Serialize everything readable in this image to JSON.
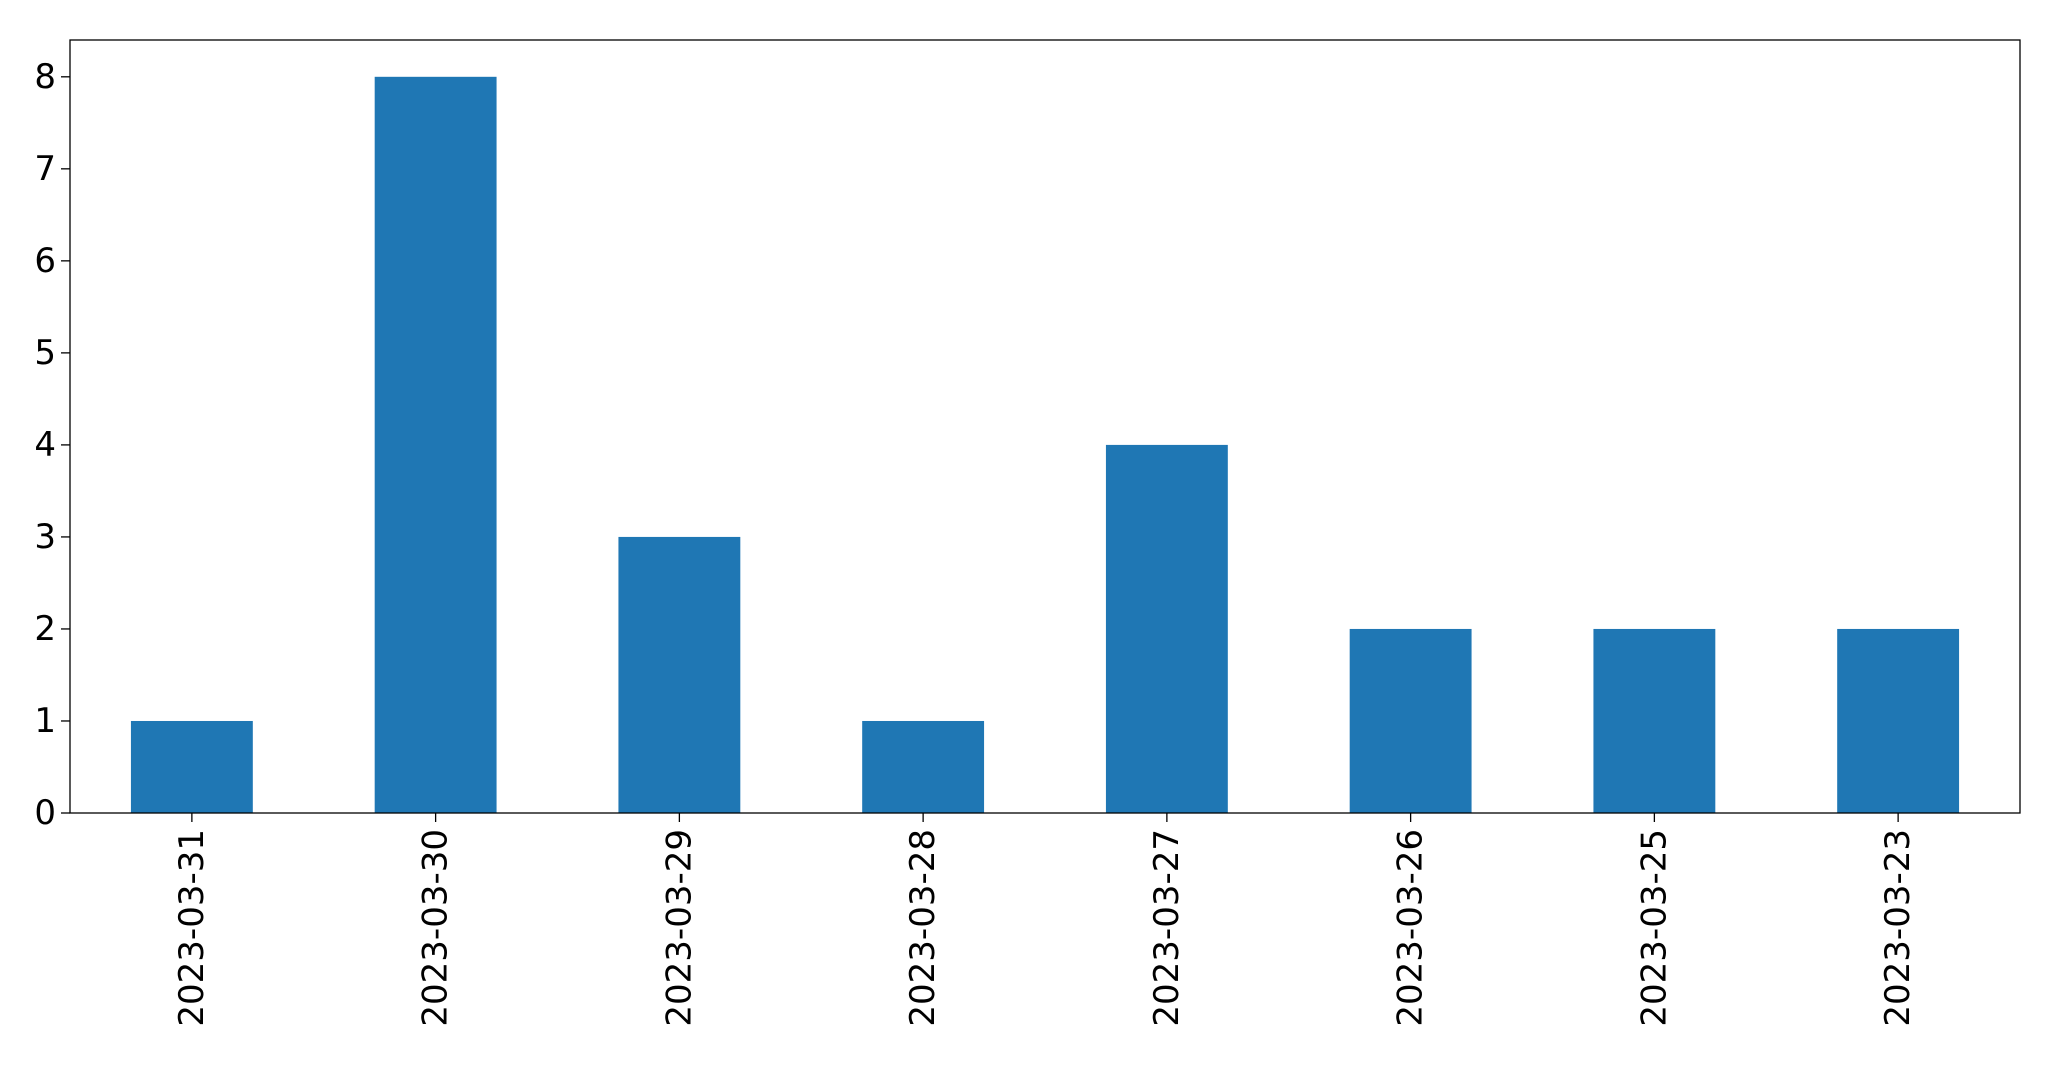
{
  "chart_data": {
    "type": "bar",
    "title": "",
    "xlabel": "",
    "ylabel": "",
    "categories": [
      "2023-03-31",
      "2023-03-30",
      "2023-03-29",
      "2023-03-28",
      "2023-03-27",
      "2023-03-26",
      "2023-03-25",
      "2023-03-23"
    ],
    "values": [
      1,
      8,
      3,
      1,
      4,
      2,
      2,
      2
    ],
    "ylim": [
      0,
      8.4
    ],
    "yticks": [
      0,
      1,
      2,
      3,
      4,
      5,
      6,
      7,
      8
    ],
    "grid": false,
    "legend": "none",
    "x_tick_rotation_deg": 90,
    "colors": {
      "bar": "#1f77b4",
      "axis": "#000000",
      "text": "#000000"
    }
  }
}
